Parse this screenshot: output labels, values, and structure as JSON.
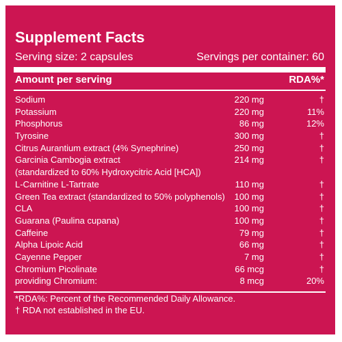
{
  "panel": {
    "title": "Supplement Facts",
    "serving_size": "Serving size: 2 capsules",
    "servings_per_container": "Servings per container: 60",
    "header": {
      "amount_label": "Amount per serving",
      "rda_label": "RDA%*"
    },
    "rows": [
      {
        "name": "Sodium",
        "amount": "220 mg",
        "rda": "†"
      },
      {
        "name": "Potassium",
        "amount": "220 mg",
        "rda": "11%"
      },
      {
        "name": "Phosphorus",
        "amount": "86 mg",
        "rda": "12%"
      },
      {
        "name": "Tyrosine",
        "amount": "300 mg",
        "rda": "†"
      },
      {
        "name": "Citrus Aurantium extract (4% Synephrine)",
        "amount": "250 mg",
        "rda": "†"
      },
      {
        "name": "Garcinia Cambogia extract",
        "amount": "214 mg",
        "rda": "†"
      },
      {
        "name": "(standardized to 60% Hydroxycitric Acid [HCA])",
        "amount": "",
        "rda": ""
      },
      {
        "name": "L-Carnitine L-Tartrate",
        "amount": "110 mg",
        "rda": "†"
      },
      {
        "name": "Green Tea extract (standardized to 50% polyphenols)",
        "amount": "100 mg",
        "rda": "†"
      },
      {
        "name": "CLA",
        "amount": "100 mg",
        "rda": "†"
      },
      {
        "name": "Guarana (Paulina cupana)",
        "amount": "100 mg",
        "rda": "†"
      },
      {
        "name": "Caffeine",
        "amount": "79 mg",
        "rda": "†"
      },
      {
        "name": "Alpha Lipoic Acid",
        "amount": "66 mg",
        "rda": "†"
      },
      {
        "name": "Cayenne Pepper",
        "amount": "7 mg",
        "rda": "†"
      },
      {
        "name": "Chromium Picolinate",
        "amount": "66 mcg",
        "rda": "†"
      },
      {
        "name": "providing Chromium:",
        "amount": "8 mcg",
        "rda": "20%"
      }
    ],
    "footnotes": {
      "rda_note": "*RDA%: Percent of the Recommended Daily Allowance.",
      "dagger_note": "† RDA not established in the EU."
    },
    "colors": {
      "background": "#cc1552",
      "text": "#ffffff"
    }
  }
}
